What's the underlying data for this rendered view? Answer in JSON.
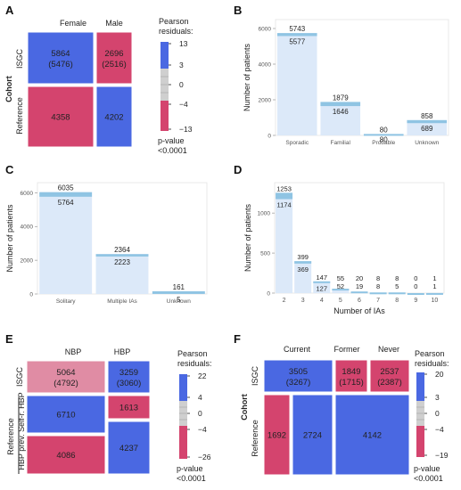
{
  "colors": {
    "neg": "#d4446e",
    "neg_light": "#e08ca4",
    "pos": "#4a68e2",
    "gray": "#cfcfcf",
    "bar_fill": "#dce9f9",
    "bar_top": "#8fc4e3",
    "axis_text": "#555555"
  },
  "chart_data": [
    {
      "panel": "A",
      "type": "mosaic",
      "column_labels": [
        "Female",
        "Male"
      ],
      "row_axis_title": "Cohort",
      "row_labels": [
        "ISGC",
        "Reference"
      ],
      "cells": [
        {
          "row": "ISGC",
          "col": "Female",
          "observed": 5864,
          "expected": 5476,
          "shade": "pos",
          "label": "5864",
          "sublabel": "(5476)"
        },
        {
          "row": "ISGC",
          "col": "Male",
          "observed": 2696,
          "expected": 2516,
          "shade": "neg",
          "label": "2696",
          "sublabel": "(2516)"
        },
        {
          "row": "Reference",
          "col": "Female",
          "observed": 4358,
          "shade": "neg",
          "label": "4358"
        },
        {
          "row": "Reference",
          "col": "Male",
          "observed": 4202,
          "shade": "pos",
          "label": "4202"
        }
      ],
      "legend": {
        "title_lines": [
          "Pearson",
          "residuals:"
        ],
        "ticks": [
          "13",
          "3",
          "0",
          "−4",
          "−13"
        ],
        "range": [
          -13,
          13
        ]
      },
      "pvalue_lines": [
        "p-value",
        "<0.0001"
      ]
    },
    {
      "panel": "B",
      "type": "bar",
      "categories": [
        "Sporadic",
        "Familial",
        "Probable",
        "Unknown"
      ],
      "series": [
        {
          "values": [
            5743,
            1879,
            80,
            858
          ]
        },
        {
          "values": [
            5577,
            1646,
            80,
            689
          ]
        }
      ],
      "ylabel": "Number of patients",
      "yticks": [
        0,
        2000,
        4000,
        6000
      ],
      "ylim": [
        0,
        6500
      ],
      "grid": false
    },
    {
      "panel": "C",
      "type": "bar",
      "categories": [
        "Solitary",
        "Multiple IAs",
        "Unknown"
      ],
      "series": [
        {
          "values": [
            6035,
            2364,
            161
          ]
        },
        {
          "values": [
            5764,
            2223,
            5
          ]
        }
      ],
      "ylabel": "Number of patients",
      "yticks": [
        0,
        2000,
        4000,
        6000
      ],
      "ylim": [
        0,
        6600
      ],
      "grid": false
    },
    {
      "panel": "D",
      "type": "bar",
      "categories": [
        "2",
        "3",
        "4",
        "5",
        "6",
        "7",
        "8",
        "9",
        "10"
      ],
      "series": [
        {
          "values": [
            1253,
            399,
            147,
            55,
            20,
            8,
            8,
            0,
            1
          ]
        },
        {
          "values": [
            1174,
            369,
            127,
            52,
            19,
            8,
            5,
            0,
            1
          ]
        }
      ],
      "xlabel": "Number of IAs",
      "ylabel": "Number of patients",
      "yticks": [
        0,
        500,
        1000
      ],
      "ylim": [
        0,
        1380
      ],
      "grid": false
    },
    {
      "panel": "E",
      "type": "mosaic",
      "column_labels": [
        "NBP",
        "HBP"
      ],
      "row_labels": [
        "ISGC",
        "Reference",
        "HBP prev. Self-r. HBP"
      ],
      "cells": [
        {
          "row": "ISGC",
          "col": "NBP",
          "observed": 5064,
          "expected": 4792,
          "shade": "neg_light",
          "label": "5064",
          "sublabel": "(4792)"
        },
        {
          "row": "ISGC",
          "col": "HBP",
          "observed": 3259,
          "expected": 3060,
          "shade": "pos",
          "label": "3259",
          "sublabel": "(3060)"
        },
        {
          "row": "Reference",
          "col": "NBP",
          "observed": 6710,
          "shade": "pos",
          "label": "6710"
        },
        {
          "row": "Reference",
          "col": "HBP",
          "observed": 1613,
          "shade": "neg",
          "label": "1613"
        },
        {
          "row": "HBP prev. Self-r. HBP",
          "col": "HBP",
          "observed": 4237,
          "shade": "pos",
          "label": "4237"
        },
        {
          "row": "HBP prev. Self-r. HBP",
          "col": "NBP",
          "observed": 4086,
          "shade": "neg",
          "label": "4086"
        }
      ],
      "legend": {
        "title_lines": [
          "Pearson",
          "residuals:"
        ],
        "ticks": [
          "22",
          "4",
          "0",
          "−4",
          "−26"
        ],
        "range": [
          -26,
          22
        ]
      },
      "pvalue_lines": [
        "p-value",
        "<0.0001"
      ]
    },
    {
      "panel": "F",
      "type": "mosaic",
      "column_labels": [
        "Current",
        "Former",
        "Never"
      ],
      "row_axis_title": "Cohort",
      "row_labels": [
        "ISGC",
        "Reference"
      ],
      "cells": [
        {
          "row": "ISGC",
          "col": "Current",
          "observed": 3505,
          "expected": 3267,
          "shade": "pos",
          "label": "3505",
          "sublabel": "(3267)"
        },
        {
          "row": "ISGC",
          "col": "Former",
          "observed": 1849,
          "expected": 1715,
          "shade": "neg",
          "label": "1849",
          "sublabel": "(1715)"
        },
        {
          "row": "ISGC",
          "col": "Never",
          "observed": 2537,
          "expected": 2387,
          "shade": "neg",
          "label": "2537",
          "sublabel": "(2387)"
        },
        {
          "row": "Reference",
          "col": "Current",
          "observed": 1692,
          "shade": "neg",
          "label": "1692"
        },
        {
          "row": "Reference",
          "col": "Former",
          "observed": 2724,
          "shade": "pos",
          "label": "2724"
        },
        {
          "row": "Reference",
          "col": "Never",
          "observed": 4142,
          "shade": "pos",
          "label": "4142"
        }
      ],
      "legend": {
        "title_lines": [
          "Pearson",
          "residuals:"
        ],
        "ticks": [
          "20",
          "3",
          "0",
          "−4",
          "−19"
        ],
        "range": [
          -19,
          20
        ]
      },
      "pvalue_lines": [
        "p-value",
        "<0.0001"
      ]
    }
  ]
}
